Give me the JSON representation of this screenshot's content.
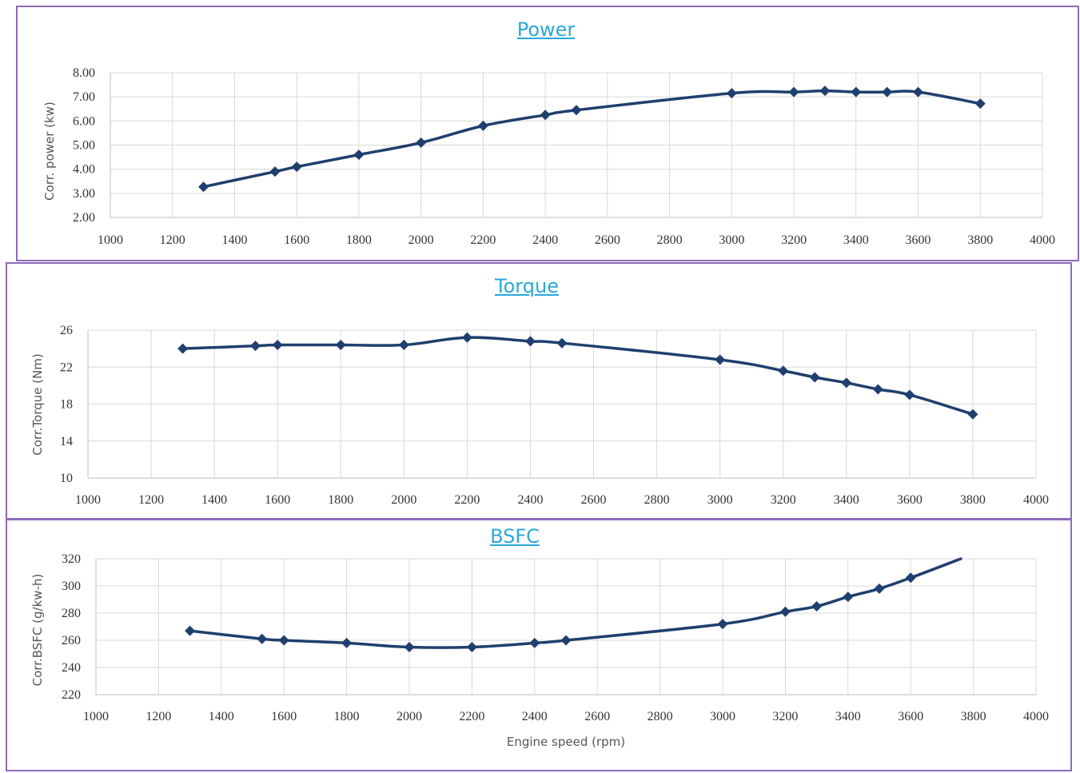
{
  "colors": {
    "line": "#1f3f6e",
    "grid": "#d9d9d9",
    "border": "#8e6bb8",
    "title": "#2aa8d8"
  },
  "chart_data": [
    {
      "type": "line",
      "title": "Power",
      "ylabel": "Corr. power (kw)",
      "xlabel": "",
      "xlim": [
        1000,
        4000
      ],
      "ylim": [
        2,
        8
      ],
      "xticks": [
        "1000",
        "1200",
        "1400",
        "1600",
        "1800",
        "2000",
        "2200",
        "2400",
        "2600",
        "2800",
        "3000",
        "3200",
        "3400",
        "3600",
        "3800",
        "4000"
      ],
      "yticks": [
        "2.00",
        "3.00",
        "4.00",
        "5.00",
        "6.00",
        "7.00",
        "8.00"
      ],
      "grid": true,
      "series": [
        {
          "x": [
            1300,
            1530,
            1600,
            1800,
            2000,
            2200,
            2400,
            2500,
            3000,
            3200,
            3300,
            3400,
            3500,
            3600,
            3800
          ],
          "y": [
            3.27,
            3.9,
            4.1,
            4.6,
            5.1,
            5.8,
            6.25,
            6.45,
            7.15,
            7.2,
            7.25,
            7.2,
            7.2,
            7.2,
            6.72
          ]
        }
      ]
    },
    {
      "type": "line",
      "title": "Torque",
      "ylabel": "Corr.Torque (Nm)",
      "xlabel": "",
      "xlim": [
        1000,
        4000
      ],
      "ylim": [
        10,
        26
      ],
      "xticks": [
        "1000",
        "1200",
        "1400",
        "1600",
        "1800",
        "2000",
        "2200",
        "2400",
        "2600",
        "2800",
        "3000",
        "3200",
        "3400",
        "3600",
        "3800",
        "4000"
      ],
      "yticks": [
        "10",
        "14",
        "18",
        "22",
        "26"
      ],
      "grid": true,
      "series": [
        {
          "x": [
            1300,
            1530,
            1600,
            1800,
            2000,
            2200,
            2400,
            2500,
            3000,
            3200,
            3300,
            3400,
            3500,
            3600,
            3800
          ],
          "y": [
            24.0,
            24.3,
            24.4,
            24.4,
            24.4,
            25.2,
            24.8,
            24.6,
            22.8,
            21.6,
            20.9,
            20.3,
            19.6,
            19.0,
            16.9
          ]
        }
      ]
    },
    {
      "type": "line",
      "title": "BSFC",
      "ylabel": "Corr.BSFC (g/kw-h)",
      "xlabel": "Engine speed (rpm)",
      "xlim": [
        1000,
        4000
      ],
      "ylim": [
        220,
        320
      ],
      "xticks": [
        "1000",
        "1200",
        "1400",
        "1600",
        "1800",
        "2000",
        "2200",
        "2400",
        "2600",
        "2800",
        "3000",
        "3200",
        "3400",
        "3600",
        "3800",
        "4000"
      ],
      "yticks": [
        "220",
        "240",
        "260",
        "280",
        "300",
        "320"
      ],
      "grid": true,
      "series": [
        {
          "x": [
            1300,
            1530,
            1600,
            1800,
            2000,
            2200,
            2400,
            2500,
            3000,
            3200,
            3300,
            3400,
            3500,
            3600
          ],
          "y": [
            267,
            261,
            260,
            258,
            255,
            255,
            258,
            260,
            272,
            281,
            285,
            292,
            298,
            306
          ],
          "tail": {
            "x": 3760,
            "y": 320
          }
        }
      ]
    }
  ]
}
